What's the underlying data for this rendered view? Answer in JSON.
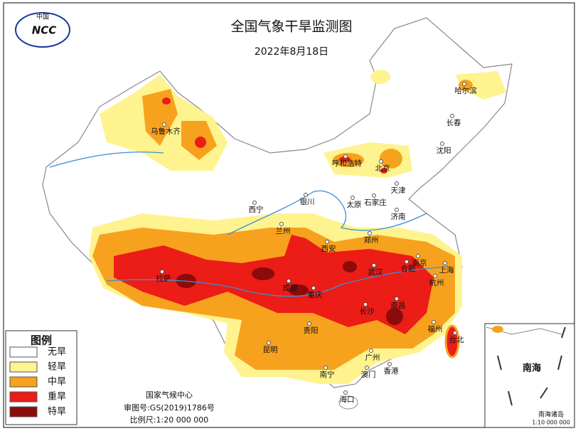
{
  "header": {
    "logo_text": "中国",
    "logo_mark": "NCC",
    "title": "全国气象干旱监测图",
    "date": "2022年8月18日"
  },
  "legend": {
    "title": "图例",
    "items": [
      {
        "label": "无旱",
        "color": "#ffffff"
      },
      {
        "label": "轻旱",
        "color": "#fef38e"
      },
      {
        "label": "中旱",
        "color": "#f7a21f"
      },
      {
        "label": "重旱",
        "color": "#ec1c16"
      },
      {
        "label": "特旱",
        "color": "#8b0b0b"
      }
    ]
  },
  "cities": [
    "乌鲁木齐",
    "哈尔滨",
    "长春",
    "沈阳",
    "呼和浩特",
    "北京",
    "天津",
    "石家庄",
    "太原",
    "银川",
    "西宁",
    "兰州",
    "济南",
    "郑州",
    "西安",
    "南京",
    "合肥",
    "上海",
    "武汉",
    "杭州",
    "拉萨",
    "成都",
    "重庆",
    "长沙",
    "南昌",
    "贵阳",
    "福州",
    "台北",
    "昆明",
    "广州",
    "南宁",
    "澳门",
    "香港",
    "海口"
  ],
  "credits": {
    "agency": "国家气候中心",
    "approval": "审图号:GS(2019)1786号",
    "scale": "比例尺:1:20 000 000"
  },
  "inset": {
    "sea": "南海",
    "islands": "南海诸岛",
    "scale": "1:10 000 000"
  }
}
